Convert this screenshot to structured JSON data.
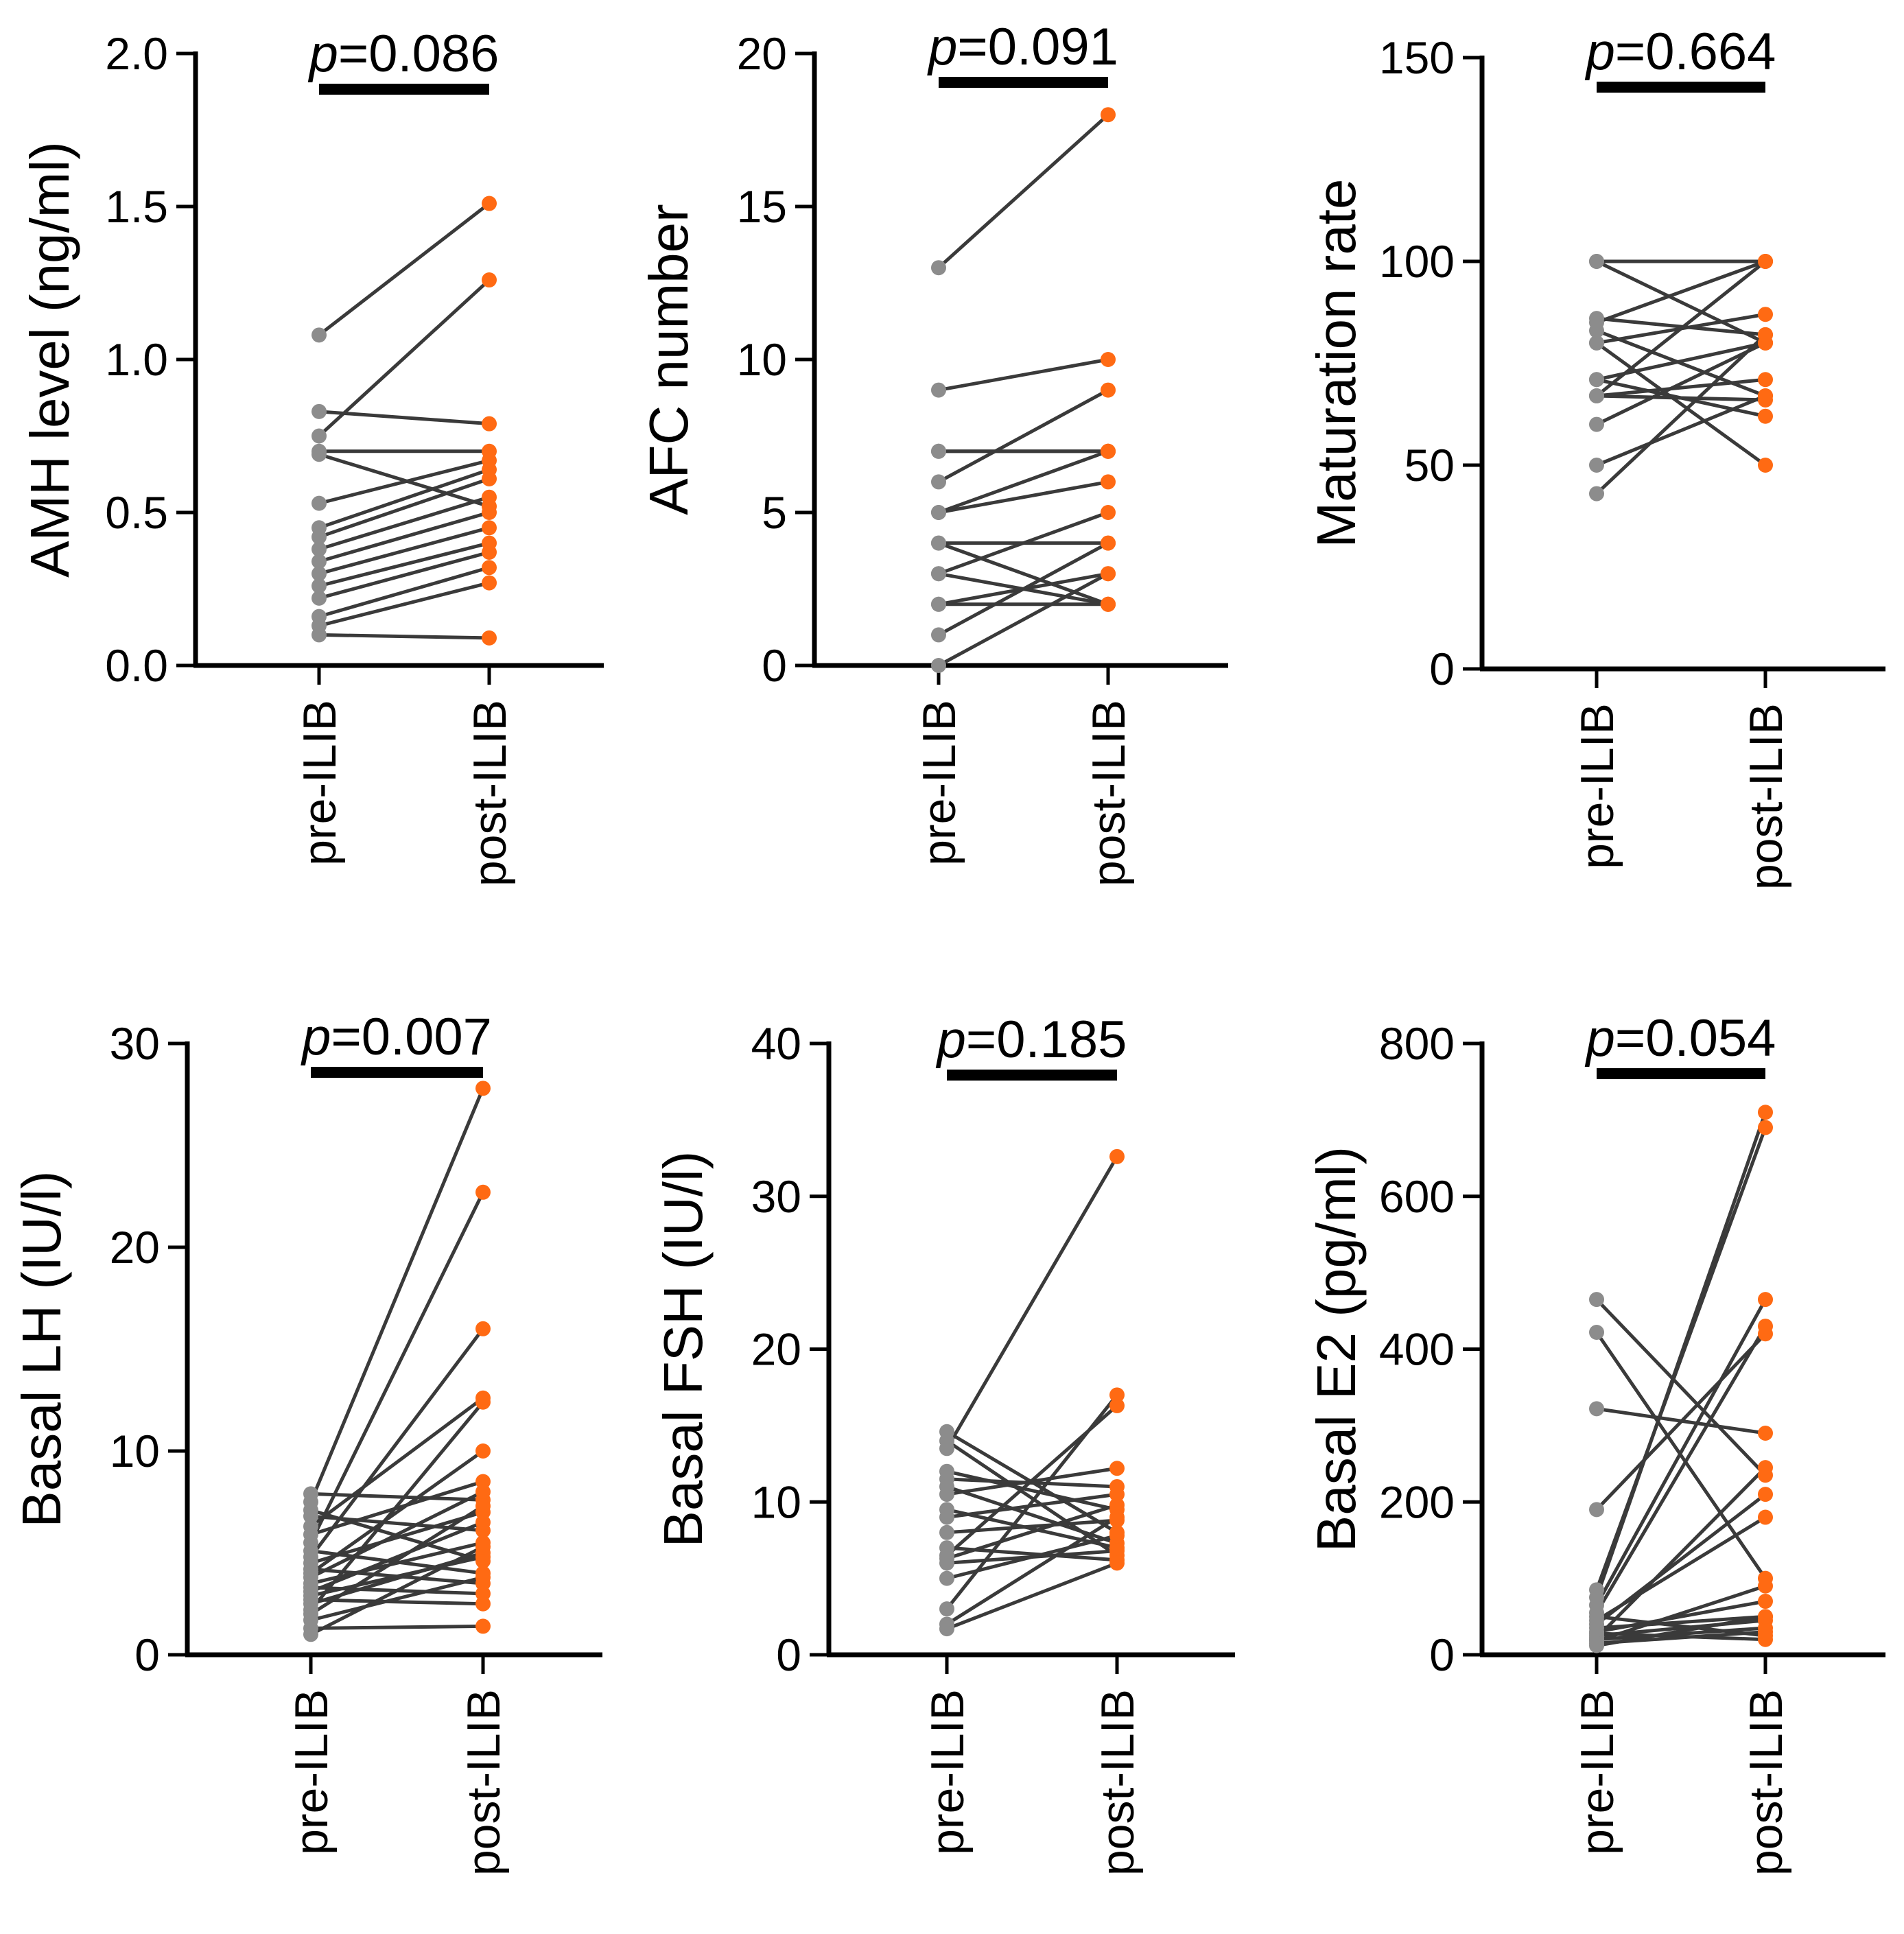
{
  "chart_data": [
    {
      "type": "paired-scatter",
      "ylabel": "AMH level (ng/ml)",
      "ylim": [
        0,
        2.0
      ],
      "yticks": [
        "0.0",
        "0.5",
        "1.0",
        "1.5",
        "2.0"
      ],
      "yticks_values": [
        0,
        0.5,
        1.0,
        1.5,
        2.0
      ],
      "categories": [
        "pre-ILIB",
        "post-ILIB"
      ],
      "p_prefix": "p",
      "p_value": "=0.086",
      "pairs": [
        [
          1.08,
          1.51
        ],
        [
          0.83,
          0.79
        ],
        [
          0.75,
          1.26
        ],
        [
          0.7,
          0.7
        ],
        [
          0.69,
          0.52
        ],
        [
          0.53,
          0.67
        ],
        [
          0.45,
          0.64
        ],
        [
          0.42,
          0.61
        ],
        [
          0.38,
          0.55
        ],
        [
          0.34,
          0.5
        ],
        [
          0.3,
          0.45
        ],
        [
          0.26,
          0.4
        ],
        [
          0.22,
          0.37
        ],
        [
          0.16,
          0.32
        ],
        [
          0.13,
          0.27
        ],
        [
          0.1,
          0.09
        ]
      ],
      "colors": {
        "pre": "#8c8c8c",
        "post": "#ff6a13"
      }
    },
    {
      "type": "paired-scatter",
      "ylabel": "AFC number",
      "ylim": [
        0,
        20
      ],
      "yticks": [
        "0",
        "5",
        "10",
        "15",
        "20"
      ],
      "yticks_values": [
        0,
        5,
        10,
        15,
        20
      ],
      "categories": [
        "pre-ILIB",
        "post-ILIB"
      ],
      "p_prefix": "p",
      "p_value": "=0.091",
      "pairs": [
        [
          13,
          18
        ],
        [
          9,
          10
        ],
        [
          7,
          7
        ],
        [
          7,
          7
        ],
        [
          6,
          9
        ],
        [
          5,
          7
        ],
        [
          5,
          6
        ],
        [
          4,
          4
        ],
        [
          4,
          2
        ],
        [
          3,
          5
        ],
        [
          3,
          2
        ],
        [
          2,
          3
        ],
        [
          2,
          2
        ],
        [
          1,
          4
        ],
        [
          0,
          3
        ]
      ],
      "colors": {
        "pre": "#8c8c8c",
        "post": "#ff6a13"
      }
    },
    {
      "type": "paired-scatter",
      "ylabel": "Maturation rate",
      "ylim": [
        0,
        150
      ],
      "yticks": [
        "0",
        "50",
        "100",
        "150"
      ],
      "yticks_values": [
        0,
        50,
        100,
        150
      ],
      "categories": [
        "pre-ILIB",
        "post-ILIB"
      ],
      "p_prefix": "p",
      "p_value": "=0.664",
      "pairs": [
        [
          100,
          100
        ],
        [
          100,
          80
        ],
        [
          86,
          82
        ],
        [
          85,
          100
        ],
        [
          83,
          67
        ],
        [
          80,
          87
        ],
        [
          80,
          50
        ],
        [
          71,
          80
        ],
        [
          71,
          62
        ],
        [
          67,
          100
        ],
        [
          67,
          71
        ],
        [
          67,
          66
        ],
        [
          60,
          80
        ],
        [
          50,
          67
        ],
        [
          43,
          82
        ]
      ],
      "colors": {
        "pre": "#8c8c8c",
        "post": "#ff6a13"
      }
    },
    {
      "type": "paired-scatter",
      "ylabel": "Basal LH (IU/l)",
      "ylim": [
        0,
        30
      ],
      "yticks": [
        "0",
        "10",
        "20",
        "30"
      ],
      "yticks_values": [
        0,
        10,
        20,
        30
      ],
      "categories": [
        "pre-ILIB",
        "post-ILIB"
      ],
      "p_prefix": "p",
      "p_value": "=0.007",
      "pairs": [
        [
          7.9,
          7.6
        ],
        [
          7.5,
          27.8
        ],
        [
          7.1,
          4.6
        ],
        [
          6.8,
          6.1
        ],
        [
          6.3,
          12.6
        ],
        [
          5.9,
          8.5
        ],
        [
          5.5,
          22.7
        ],
        [
          5.1,
          4.0
        ],
        [
          4.8,
          16.0
        ],
        [
          4.5,
          7.0
        ],
        [
          4.2,
          3.5
        ],
        [
          4.0,
          10.0
        ],
        [
          3.8,
          8.0
        ],
        [
          3.5,
          5.5
        ],
        [
          3.3,
          3.0
        ],
        [
          3.1,
          6.5
        ],
        [
          2.9,
          4.8
        ],
        [
          2.7,
          2.5
        ],
        [
          2.5,
          5.0
        ],
        [
          2.2,
          12.4
        ],
        [
          2.0,
          7.3
        ],
        [
          1.7,
          3.8
        ],
        [
          1.3,
          1.4
        ],
        [
          1.0,
          5.3
        ]
      ],
      "colors": {
        "pre": "#8c8c8c",
        "post": "#ff6a13"
      }
    },
    {
      "type": "paired-scatter",
      "ylabel": "Basal FSH (IU/l)",
      "ylim": [
        0,
        40
      ],
      "yticks": [
        "0",
        "10",
        "20",
        "30",
        "40"
      ],
      "yticks_values": [
        0,
        10,
        20,
        30,
        40
      ],
      "categories": [
        "pre-ILIB",
        "post-ILIB"
      ],
      "p_prefix": "p",
      "p_value": "=0.185",
      "pairs": [
        [
          14.6,
          8.0
        ],
        [
          14.0,
          6.5
        ],
        [
          13.5,
          32.6
        ],
        [
          12.0,
          9.5
        ],
        [
          11.5,
          11.0
        ],
        [
          11.0,
          7.3
        ],
        [
          10.5,
          12.2
        ],
        [
          9.5,
          7.0
        ],
        [
          9.0,
          10.5
        ],
        [
          8.0,
          8.8
        ],
        [
          7.0,
          6.2
        ],
        [
          6.5,
          16.3
        ],
        [
          6.3,
          9.8
        ],
        [
          6.0,
          6.8
        ],
        [
          5.0,
          7.8
        ],
        [
          3.0,
          17.0
        ],
        [
          2.0,
          9.0
        ],
        [
          1.7,
          6.0
        ]
      ],
      "colors": {
        "pre": "#8c8c8c",
        "post": "#ff6a13"
      }
    },
    {
      "type": "paired-scatter",
      "ylabel": "Basal E2 (pg/ml)",
      "ylim": [
        0,
        800
      ],
      "yticks": [
        "0",
        "200",
        "400",
        "600",
        "800"
      ],
      "yticks_values": [
        0,
        200,
        400,
        600,
        800
      ],
      "categories": [
        "pre-ILIB",
        "post-ILIB"
      ],
      "p_prefix": "p",
      "p_value": "=0.054",
      "pairs": [
        [
          465,
          235
        ],
        [
          422,
          100
        ],
        [
          322,
          290
        ],
        [
          190,
          420
        ],
        [
          85,
          690
        ],
        [
          75,
          710
        ],
        [
          65,
          465
        ],
        [
          55,
          430
        ],
        [
          50,
          25
        ],
        [
          45,
          180
        ],
        [
          40,
          210
        ],
        [
          35,
          50
        ],
        [
          30,
          70
        ],
        [
          28,
          20
        ],
        [
          25,
          45
        ],
        [
          22,
          245
        ],
        [
          20,
          35
        ],
        [
          18,
          90
        ],
        [
          15,
          30
        ],
        [
          12,
          50
        ]
      ],
      "colors": {
        "pre": "#8c8c8c",
        "post": "#ff6a13"
      }
    }
  ]
}
